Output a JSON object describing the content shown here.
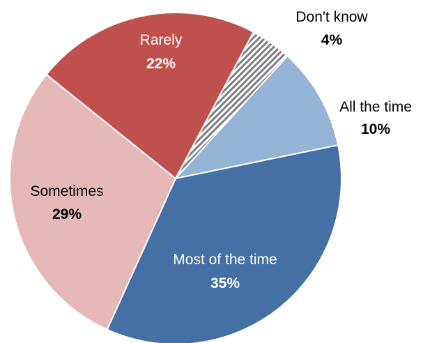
{
  "chart_data": {
    "type": "pie",
    "title": "",
    "slices": [
      {
        "label": "Don't know",
        "value": 4,
        "display": "4%",
        "color": "#9a9a9a",
        "pattern": "diagonal-stripes",
        "label_color": "#000000",
        "label_placement": "outside"
      },
      {
        "label": "All the time",
        "value": 10,
        "display": "10%",
        "color": "#95b3d7",
        "label_color": "#000000",
        "label_placement": "outside"
      },
      {
        "label": "Most of the time",
        "value": 35,
        "display": "35%",
        "color": "#4470a6",
        "label_color": "#ffffff",
        "label_placement": "inside"
      },
      {
        "label": "Sometimes",
        "value": 29,
        "display": "29%",
        "color": "#e6b8b7",
        "label_color": "#000000",
        "label_placement": "inside"
      },
      {
        "label": "Rarely",
        "value": 22,
        "display": "22%",
        "color": "#c0504d",
        "label_color": "#ffffff",
        "label_placement": "inside"
      }
    ],
    "start_angle_deg": 28,
    "direction": "clockwise",
    "slice_border_color": "#ffffff",
    "legend": "none"
  }
}
